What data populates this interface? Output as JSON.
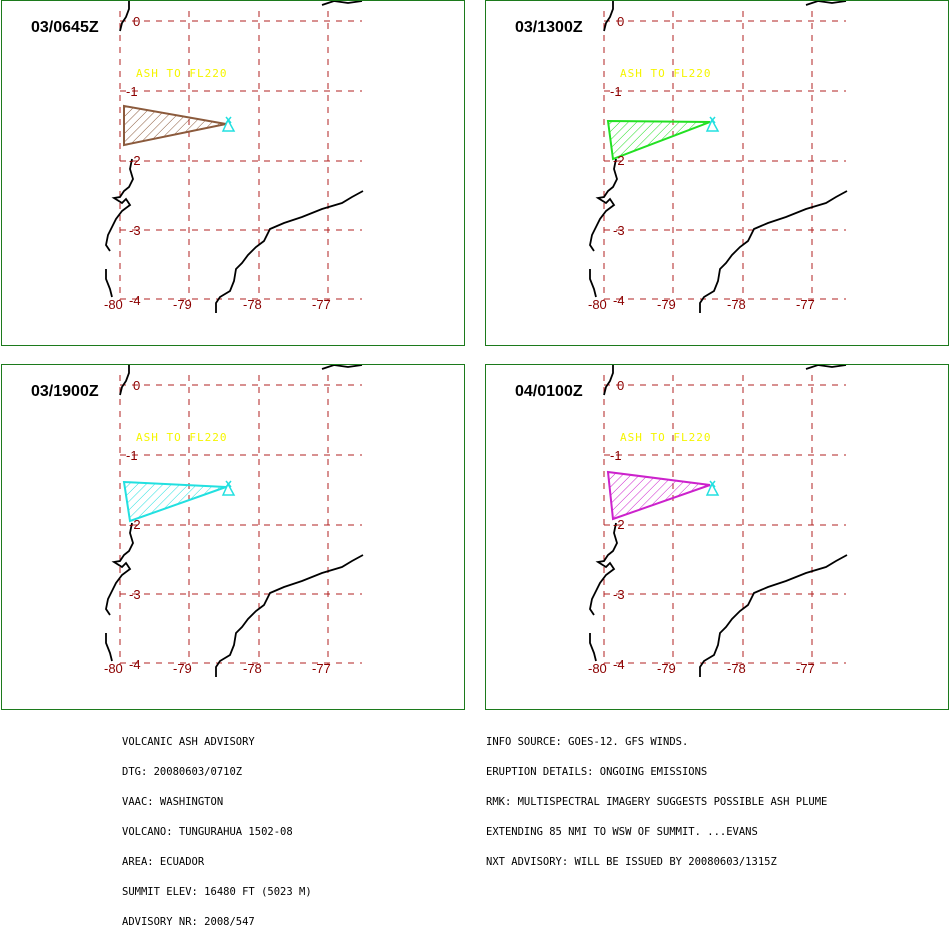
{
  "panels": [
    {
      "time": "03/0645Z",
      "ash_label": "ASH TO FL220",
      "plume_color": "#8b5a3c"
    },
    {
      "time": "03/1300Z",
      "ash_label": "ASH TO FL220",
      "plume_color": "#22e022"
    },
    {
      "time": "03/1900Z",
      "ash_label": "ASH TO FL220",
      "plume_color": "#22e0e0"
    },
    {
      "time": "04/0100Z",
      "ash_label": "ASH TO FL220",
      "plume_color": "#cc22cc"
    }
  ],
  "lat_labels": [
    "0",
    "-1",
    "-2",
    "-3",
    "-4"
  ],
  "lon_labels": [
    "-80",
    "-79",
    "-78",
    "-77"
  ],
  "advisory_left": [
    "VOLCANIC ASH ADVISORY",
    "DTG: 20080603/0710Z",
    "VAAC: WASHINGTON",
    "VOLCANO: TUNGURAHUA 1502-08",
    "AREA: ECUADOR",
    "SUMMIT ELEV: 16480 FT (5023 M)",
    "ADVISORY NR: 2008/547"
  ],
  "advisory_right": [
    "INFO SOURCE: GOES-12. GFS WINDS.",
    "ERUPTION DETAILS: ONGOING EMISSIONS",
    "RMK: MULTISPECTRAL IMAGERY SUGGESTS POSSIBLE ASH PLUME",
    "EXTENDING 85 NMI TO WSW OF SUMMIT. ...EVANS",
    "NXT ADVISORY: WILL BE ISSUED BY 20080603/1315Z"
  ],
  "colors": {
    "grid": "#b22222",
    "frame": "#1c7a1c",
    "label": "#8b0000",
    "ash_text": "#f5f500",
    "volcano": "#22e0e0"
  }
}
